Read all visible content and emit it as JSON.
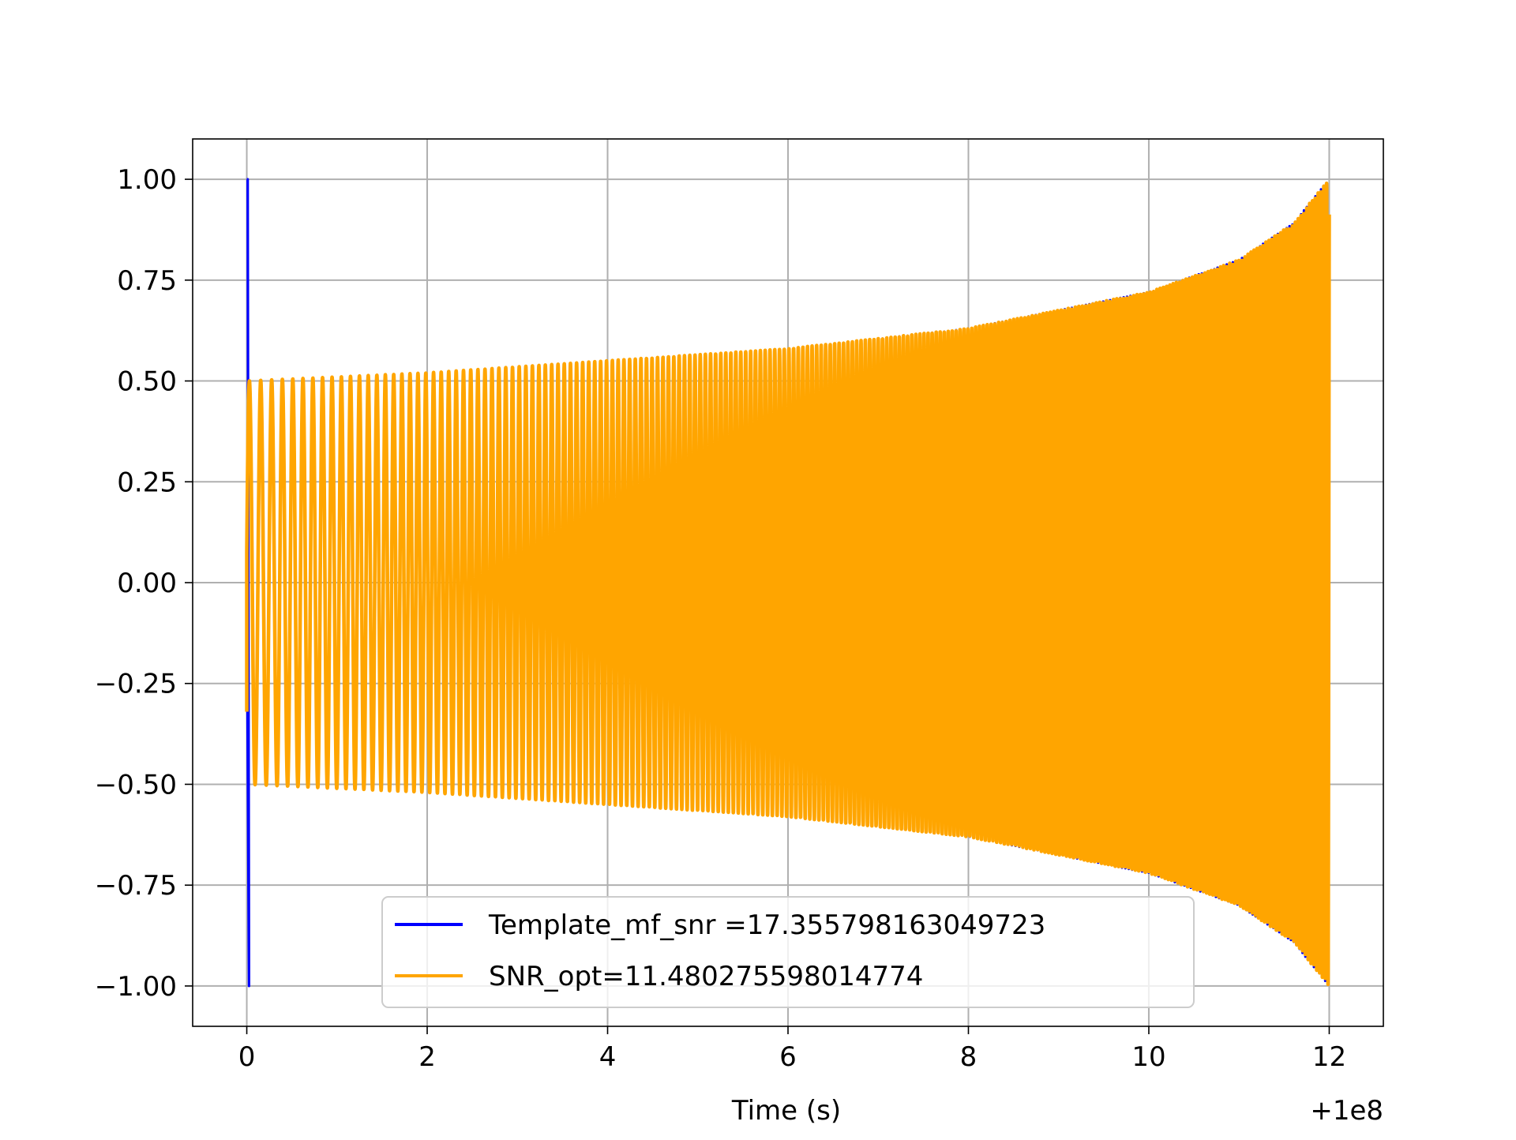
{
  "chart_data": {
    "type": "line",
    "title": "",
    "xlabel": "Time (s)",
    "ylabel": "",
    "x_offset_label": "+1e8",
    "xlim": [
      -0.6,
      12.6
    ],
    "ylim": [
      -1.1,
      1.1
    ],
    "grid": true,
    "legend_position": "lower center",
    "x_ticks": [
      {
        "value": 0,
        "label": "0"
      },
      {
        "value": 2,
        "label": "2"
      },
      {
        "value": 4,
        "label": "4"
      },
      {
        "value": 6,
        "label": "6"
      },
      {
        "value": 8,
        "label": "8"
      },
      {
        "value": 10,
        "label": "10"
      },
      {
        "value": 12,
        "label": "12"
      }
    ],
    "y_ticks": [
      {
        "value": 1.0,
        "label": "1.00"
      },
      {
        "value": 0.75,
        "label": "0.75"
      },
      {
        "value": 0.5,
        "label": "0.50"
      },
      {
        "value": 0.25,
        "label": "0.25"
      },
      {
        "value": 0.0,
        "label": "0.00"
      },
      {
        "value": -0.25,
        "label": "−0.25"
      },
      {
        "value": -0.5,
        "label": "−0.50"
      },
      {
        "value": -0.75,
        "label": "−0.75"
      },
      {
        "value": -1.0,
        "label": "−1.00"
      }
    ],
    "series": [
      {
        "name": "Template_mf_snr =17.355798163049723",
        "color": "#0000ff",
        "t_start": 0.0,
        "t_end": 12.0,
        "initial_spike": [
          1.0,
          -1.0
        ],
        "envelope": [
          {
            "x": 0.0,
            "y": 0.5
          },
          {
            "x": 2.0,
            "y": 0.52
          },
          {
            "x": 4.0,
            "y": 0.55
          },
          {
            "x": 6.0,
            "y": 0.58
          },
          {
            "x": 8.0,
            "y": 0.63
          },
          {
            "x": 10.0,
            "y": 0.72
          },
          {
            "x": 11.0,
            "y": 0.8
          },
          {
            "x": 11.6,
            "y": 0.89
          },
          {
            "x": 12.0,
            "y": 1.0
          }
        ]
      },
      {
        "name": "SNR_opt=11.480275598014774",
        "color": "#ffa500",
        "t_start": 0.0,
        "t_end": 12.0,
        "start_value": -0.32,
        "envelope": [
          {
            "x": 0.0,
            "y": 0.5
          },
          {
            "x": 2.0,
            "y": 0.52
          },
          {
            "x": 4.0,
            "y": 0.55
          },
          {
            "x": 6.0,
            "y": 0.58
          },
          {
            "x": 8.0,
            "y": 0.63
          },
          {
            "x": 10.0,
            "y": 0.72
          },
          {
            "x": 11.0,
            "y": 0.8
          },
          {
            "x": 11.6,
            "y": 0.89
          },
          {
            "x": 12.0,
            "y": 1.0
          }
        ]
      }
    ]
  }
}
